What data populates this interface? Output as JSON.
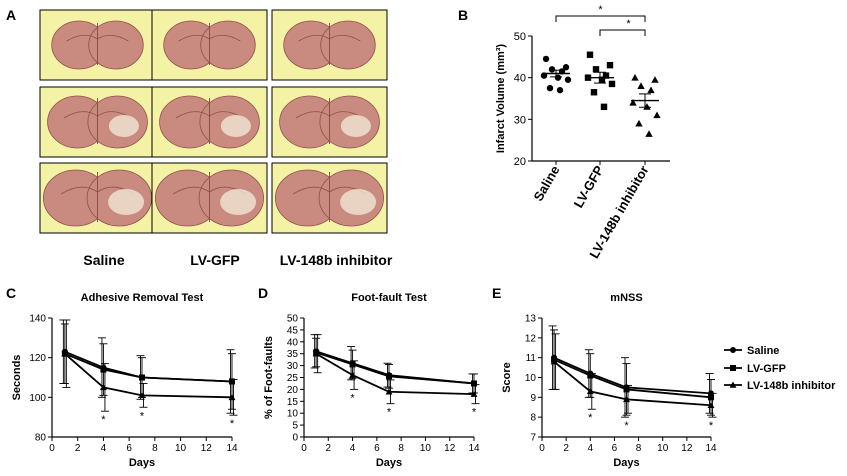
{
  "panel_a": {
    "letter": "A",
    "group_labels": [
      "Saline",
      "LV-GFP",
      "LV-148b inhibitor"
    ]
  },
  "colors": {
    "tile_bg": "#f4f2a4",
    "tissue": "#c98a80",
    "tissue_dark": "#8f4f4b",
    "ink": "#000000"
  },
  "chart_data": [
    {
      "id": "B",
      "type": "scatter",
      "letter": "B",
      "title": "",
      "ylabel": "Infarct Volume (mm³)",
      "ylim": [
        20,
        50
      ],
      "yticks": [
        20,
        30,
        40,
        50
      ],
      "categories": [
        "Saline",
        "LV-GFP",
        "LV-148b inhibitor"
      ],
      "markers": [
        "circle",
        "square",
        "triangle"
      ],
      "points": [
        [
          44.5,
          42.5,
          42,
          41.5,
          40.5,
          40,
          39.5,
          37.5,
          37
        ],
        [
          45.5,
          43,
          42,
          40.5,
          40,
          39.5,
          38.5,
          36.5,
          33
        ],
        [
          40,
          39.5,
          38,
          37,
          34,
          33,
          31,
          29,
          26.5
        ]
      ],
      "means": [
        41,
        40,
        34.5
      ],
      "sem": [
        0.8,
        1.3,
        1.6
      ],
      "significance": [
        {
          "from": 0,
          "to": 2,
          "label": "*"
        },
        {
          "from": 1,
          "to": 2,
          "label": "*"
        }
      ]
    },
    {
      "id": "C",
      "type": "line",
      "letter": "C",
      "title": "Adhesive Removal Test",
      "xlabel": "Days",
      "ylabel": "Seconds",
      "xlim": [
        0,
        14
      ],
      "xticks": [
        0,
        2,
        4,
        6,
        8,
        10,
        12,
        14
      ],
      "ylim": [
        80,
        140
      ],
      "yticks": [
        80,
        100,
        120,
        140
      ],
      "x": [
        1,
        4,
        7,
        14
      ],
      "series": [
        {
          "name": "Saline",
          "marker": "circle",
          "values": [
            123,
            115,
            110,
            108
          ],
          "err": [
            16,
            15,
            11,
            16
          ]
        },
        {
          "name": "LV-GFP",
          "marker": "square",
          "values": [
            122,
            114,
            110,
            108
          ],
          "err": [
            15,
            13,
            10,
            14
          ]
        },
        {
          "name": "LV-148b inhibitor",
          "marker": "triangle",
          "values": [
            122,
            105,
            101,
            100
          ],
          "err": [
            17,
            12,
            6,
            9
          ]
        }
      ],
      "stars": [
        {
          "x": 4,
          "label": "*"
        },
        {
          "x": 7,
          "label": "*"
        },
        {
          "x": 14,
          "label": "*"
        }
      ]
    },
    {
      "id": "D",
      "type": "line",
      "letter": "D",
      "title": "Foot-fault Test",
      "xlabel": "Days",
      "ylabel": "% of Foot-faults",
      "xlim": [
        0,
        14
      ],
      "xticks": [
        0,
        2,
        4,
        6,
        8,
        10,
        12,
        14
      ],
      "ylim": [
        0,
        50
      ],
      "yticks": [
        0,
        5,
        10,
        15,
        20,
        25,
        30,
        35,
        40,
        45,
        50
      ],
      "x": [
        1,
        4,
        7,
        14
      ],
      "series": [
        {
          "name": "Saline",
          "marker": "circle",
          "values": [
            36,
            31,
            26,
            22.5
          ],
          "err": [
            7,
            7,
            5,
            4
          ]
        },
        {
          "name": "LV-GFP",
          "marker": "square",
          "values": [
            35.5,
            30.5,
            25.5,
            22.5
          ],
          "err": [
            6,
            6,
            5,
            4
          ]
        },
        {
          "name": "LV-148b inhibitor",
          "marker": "triangle",
          "values": [
            35,
            26,
            19,
            18
          ],
          "err": [
            8,
            6,
            5,
            4
          ]
        }
      ],
      "stars": [
        {
          "x": 4,
          "label": "*"
        },
        {
          "x": 7,
          "label": "*"
        },
        {
          "x": 14,
          "label": "*"
        }
      ]
    },
    {
      "id": "E",
      "type": "line",
      "letter": "E",
      "title": "mNSS",
      "xlabel": "Days",
      "ylabel": "Score",
      "xlim": [
        0,
        14
      ],
      "xticks": [
        0,
        2,
        4,
        6,
        8,
        10,
        12,
        14
      ],
      "ylim": [
        7,
        13
      ],
      "yticks": [
        7,
        8,
        9,
        10,
        11,
        12,
        13
      ],
      "x": [
        1,
        4,
        7,
        14
      ],
      "series": [
        {
          "name": "Saline",
          "marker": "circle",
          "values": [
            11,
            10.2,
            9.5,
            9.2
          ],
          "err": [
            1.6,
            1.2,
            1.5,
            1.0
          ]
        },
        {
          "name": "LV-GFP",
          "marker": "square",
          "values": [
            10.9,
            10.1,
            9.4,
            9.0
          ],
          "err": [
            1.5,
            1.1,
            1.3,
            0.9
          ]
        },
        {
          "name": "LV-148b inhibitor",
          "marker": "triangle",
          "values": [
            10.8,
            9.3,
            8.9,
            8.6
          ],
          "err": [
            1.4,
            0.9,
            0.7,
            0.6
          ]
        }
      ],
      "stars": [
        {
          "x": 4,
          "label": "*"
        },
        {
          "x": 7,
          "label": "*"
        },
        {
          "x": 14,
          "label": "*"
        }
      ]
    }
  ],
  "legend": {
    "items": [
      {
        "label": "Saline",
        "marker": "circle"
      },
      {
        "label": "LV-GFP",
        "marker": "square"
      },
      {
        "label": "LV-148b inhibitor",
        "marker": "triangle"
      }
    ]
  }
}
